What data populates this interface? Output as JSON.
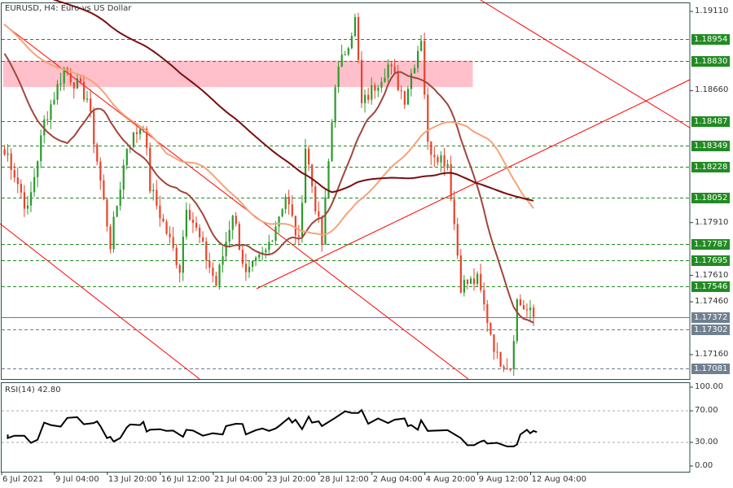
{
  "header": {
    "title": "EURUSD, H4:  Euro vs US Dollar"
  },
  "colors": {
    "bull": "#2c9a2c",
    "bear": "#e8432a",
    "level_green": "#1f8c1f",
    "level_gray": "#6d7b8a",
    "zone": "#ffc0cb",
    "trend": "#ff0000",
    "ma_fast": "#a0463c",
    "ma_mid": "#f4a47a",
    "ma_slow": "#7a0d0d"
  },
  "price_axis": {
    "max": 1.1911,
    "min": 1.1716,
    "ticks": [
      "1.19110",
      "1.18660",
      "1.17910",
      "1.17610",
      "1.17460",
      "1.17160"
    ],
    "levels": [
      {
        "value": "1.18954",
        "style": "green"
      },
      {
        "value": "1.18830",
        "style": "green"
      },
      {
        "value": "1.18487",
        "style": "green"
      },
      {
        "value": "1.18349",
        "style": "green"
      },
      {
        "value": "1.18228",
        "style": "green"
      },
      {
        "value": "1.18052",
        "style": "green"
      },
      {
        "value": "1.17787",
        "style": "green"
      },
      {
        "value": "1.17695",
        "style": "green"
      },
      {
        "value": "1.17546",
        "style": "green"
      },
      {
        "value": "1.17372",
        "style": "current"
      },
      {
        "value": "1.17302",
        "style": "gray"
      },
      {
        "value": "1.17081",
        "style": "gray"
      }
    ]
  },
  "supply_zone": {
    "from_bar": 0,
    "to_bar": 142,
    "high": 1.1883,
    "low": 1.1868
  },
  "price_path": [
    [
      1,
      1.18297
    ],
    [
      7,
      1.17973
    ],
    [
      12,
      1.18482
    ],
    [
      18,
      1.18782
    ],
    [
      25,
      1.1862
    ],
    [
      32,
      1.17789
    ],
    [
      37,
      1.18343
    ],
    [
      42,
      1.18482
    ],
    [
      44,
      1.18112
    ],
    [
      53,
      1.1765
    ],
    [
      55,
      1.18019
    ],
    [
      64,
      1.17557
    ],
    [
      69,
      1.17973
    ],
    [
      73,
      1.17604
    ],
    [
      79,
      1.17742
    ],
    [
      85,
      1.18066
    ],
    [
      89,
      1.17789
    ],
    [
      91,
      1.18343
    ],
    [
      96,
      1.17789
    ],
    [
      100,
      1.18713
    ],
    [
      106,
      1.19059
    ],
    [
      108,
      1.18574
    ],
    [
      116,
      1.18805
    ],
    [
      121,
      1.1862
    ],
    [
      126,
      1.18967
    ],
    [
      128,
      1.18343
    ],
    [
      134,
      1.18251
    ],
    [
      138,
      1.17557
    ],
    [
      143,
      1.1758
    ],
    [
      149,
      1.17141
    ],
    [
      153,
      1.17095
    ],
    [
      155,
      1.17465
    ],
    [
      160,
      1.17372
    ]
  ],
  "rsi": {
    "label": "RSI(14) 42.80",
    "ticks": [
      "100.00",
      "70.00",
      "30.00",
      "0.00"
    ],
    "levels": [
      70,
      30
    ],
    "points": [
      [
        1,
        40
      ],
      [
        1,
        35.5
      ],
      [
        3,
        38.5
      ],
      [
        6,
        38.5
      ],
      [
        8,
        29.4
      ],
      [
        10,
        33.3
      ],
      [
        12,
        55
      ],
      [
        14,
        52
      ],
      [
        17,
        50
      ],
      [
        19,
        61
      ],
      [
        22,
        62
      ],
      [
        24,
        53
      ],
      [
        27,
        54.5
      ],
      [
        28,
        56.7
      ],
      [
        29,
        50.6
      ],
      [
        31,
        35.5
      ],
      [
        32,
        37
      ],
      [
        33,
        31
      ],
      [
        35,
        35.5
      ],
      [
        37,
        49
      ],
      [
        38,
        52.7
      ],
      [
        41,
        52
      ],
      [
        42,
        56
      ],
      [
        43,
        43.6
      ],
      [
        44,
        46
      ],
      [
        47,
        46.7
      ],
      [
        49,
        44.5
      ],
      [
        51,
        45
      ],
      [
        54,
        37
      ],
      [
        55,
        46
      ],
      [
        57,
        45
      ],
      [
        60,
        38.5
      ],
      [
        63,
        41.5
      ],
      [
        66,
        40
      ],
      [
        67,
        50.6
      ],
      [
        70,
        53.6
      ],
      [
        72,
        53.3
      ],
      [
        73,
        40
      ],
      [
        76,
        45.5
      ],
      [
        78,
        47.6
      ],
      [
        80,
        44.5
      ],
      [
        82,
        47.6
      ],
      [
        83,
        50.6
      ],
      [
        86,
        61
      ],
      [
        87,
        55
      ],
      [
        88,
        58.8
      ],
      [
        90,
        46.7
      ],
      [
        92,
        62.7
      ],
      [
        93,
        55
      ],
      [
        95,
        56.7
      ],
      [
        96,
        50.6
      ],
      [
        100,
        61
      ],
      [
        103,
        69.4
      ],
      [
        105,
        67.3
      ],
      [
        107,
        67.3
      ],
      [
        108,
        71
      ],
      [
        110,
        53.6
      ],
      [
        113,
        60.3
      ],
      [
        116,
        54.5
      ],
      [
        118,
        58.8
      ],
      [
        121,
        60.3
      ],
      [
        122,
        50.6
      ],
      [
        123,
        52
      ],
      [
        125,
        46
      ],
      [
        126,
        58
      ],
      [
        128,
        44.5
      ],
      [
        134,
        45.5
      ],
      [
        138,
        35.5
      ],
      [
        140,
        26.4
      ],
      [
        142,
        26.4
      ],
      [
        144,
        31
      ],
      [
        145,
        32.4
      ],
      [
        146,
        28.5
      ],
      [
        149,
        29.4
      ],
      [
        152,
        24.8
      ],
      [
        154,
        24.8
      ],
      [
        155,
        27.3
      ],
      [
        156,
        40
      ],
      [
        158,
        46
      ],
      [
        159,
        41.5
      ],
      [
        160,
        44.5
      ],
      [
        161,
        43
      ]
    ]
  },
  "time_axis": [
    "6 Jul 2021",
    "9 Jul 04:00",
    "13 Jul 20:00",
    "16 Jul 12:00",
    "21 Jul 04:00",
    "23 Jul 20:00",
    "28 Jul 12:00",
    "2 Aug 04:00",
    "4 Aug 20:00",
    "9 Aug 12:00",
    "12 Aug 04:00"
  ]
}
